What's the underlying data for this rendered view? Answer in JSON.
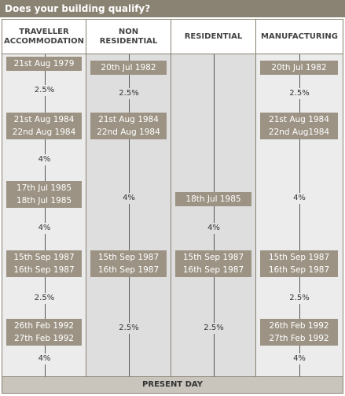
{
  "title": "Does your building qualify?",
  "columns": [
    {
      "header": [
        "TRAVELLER",
        "ACCOMMODATION"
      ],
      "items": [
        {
          "dates": [
            "21st Aug 1979"
          ]
        },
        {
          "rate": "2.5%"
        },
        {
          "dates": [
            "21st Aug 1984",
            "22nd Aug 1984"
          ]
        },
        {
          "rate": "4%"
        },
        {
          "dates": [
            "17th Jul 1985",
            "18th Jul 1985"
          ]
        },
        {
          "rate": "4%"
        },
        {
          "dates": [
            "15th Sep 1987",
            "16th Sep 1987"
          ]
        },
        {
          "rate": "2.5%"
        },
        {
          "dates": [
            "26th Feb 1992",
            "27th Feb 1992"
          ]
        },
        {
          "rate": "4%"
        }
      ]
    },
    {
      "header": [
        "NON",
        "RESIDENTIAL"
      ],
      "items": [
        {
          "dates": [
            "20th Jul 1982"
          ]
        },
        {
          "rate": "2.5%"
        },
        {
          "dates": [
            "21st Aug 1984",
            "22nd Aug 1984"
          ]
        },
        {
          "rate": "4%"
        },
        {
          "dates": [
            "15th Sep 1987",
            "16th Sep 1987"
          ]
        },
        {
          "rate": "2.5%"
        }
      ]
    },
    {
      "header": [
        "RESIDENTIAL"
      ],
      "items": [
        {
          "dates": [
            "18th Jul 1985"
          ]
        },
        {
          "rate": "4%"
        },
        {
          "dates": [
            "15th Sep 1987",
            "16th Sep 1987"
          ]
        },
        {
          "rate": "2.5%"
        }
      ]
    },
    {
      "header": [
        "MANUFACTURING"
      ],
      "items": [
        {
          "dates": [
            "20th Jul 1982"
          ]
        },
        {
          "rate": "2.5%"
        },
        {
          "dates": [
            "21st Aug 1984",
            "22nd Aug1984"
          ]
        },
        {
          "rate": "4%"
        },
        {
          "dates": [
            "15th Sep 1987",
            "16th Sep 1987"
          ]
        },
        {
          "rate": "2.5%"
        },
        {
          "dates": [
            "26th Feb 1992",
            "27th Feb 1992"
          ]
        },
        {
          "rate": "4%"
        }
      ]
    }
  ],
  "footer": "PRESENT DAY"
}
